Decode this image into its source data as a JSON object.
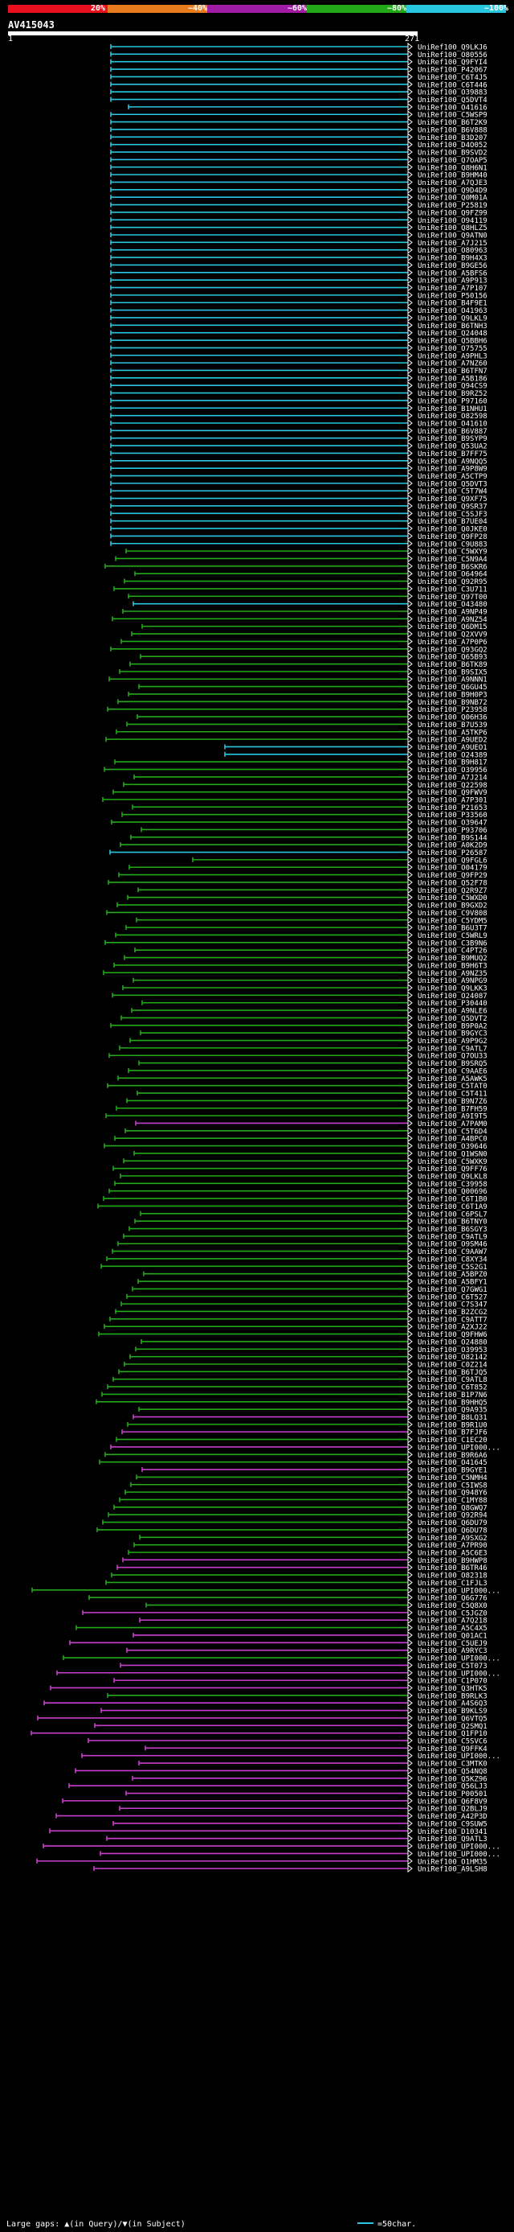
{
  "header": {
    "legend": [
      {
        "label": "20%",
        "color": "#e8101e"
      },
      {
        "label": "~40%",
        "color": "#e87b1e"
      },
      {
        "label": "~60%",
        "color": "#a21ba4"
      },
      {
        "label": "~80%",
        "color": "#22a818"
      },
      {
        "label": "~100%",
        "color": "#29c6e0"
      }
    ],
    "query_id": "AV415043",
    "ruler_start": "1",
    "ruler_end": "271"
  },
  "colors": {
    "cyan": "#29c6e0",
    "green": "#22a818",
    "magenta": "#c83ecc"
  },
  "hits": {
    "labels": [
      "UniRef100_Q9LKJ6",
      "UniRef100_O80556",
      "UniRef100_Q9FYI4",
      "UniRef100_P42067",
      "UniRef100_C6T4J5",
      "UniRef100_C6T446",
      "UniRef100_O39883",
      "UniRef100_Q5DVT4",
      "UniRef100_O41616",
      "UniRef100_C5WSP9",
      "UniRef100_B6T2K9",
      "UniRef100_B6V888",
      "UniRef100_B3D207",
      "UniRef100_D4O052",
      "UniRef100_B9SVD2",
      "UniRef100_Q7OAP5",
      "UniRef100_Q8H6N1",
      "UniRef100_B9HM40",
      "UniRef100_A7QJE3",
      "UniRef100_Q9D4D9",
      "UniRef100_Q0M01A",
      "UniRef100_P25819",
      "UniRef100_Q9FZ99",
      "UniRef100_O94119",
      "UniRef100_Q8HLZ5",
      "UniRef100_Q9ATN0",
      "UniRef100_A7J215",
      "UniRef100_O80963",
      "UniRef100_B9H4X3",
      "UniRef100_B9GE56",
      "UniRef100_A5BFS6",
      "UniRef100_A9P913",
      "UniRef100_A7P107",
      "UniRef100_P50156",
      "UniRef100_B4F9E1",
      "UniRef100_O41963",
      "UniRef100_Q9LKL9",
      "UniRef100_B6TNH3",
      "UniRef100_Q24048",
      "UniRef100_Q5BBH6",
      "UniRef100_O75755",
      "UniRef100_A9PHL3",
      "UniRef100_A7NZ60",
      "UniRef100_B6TFN7",
      "UniRef100_A5B186",
      "UniRef100_Q94CS9",
      "UniRef100_B9RZ52",
      "UniRef100_P97160",
      "UniRef100_B1NHU1",
      "UniRef100_O82598",
      "UniRef100_O41610",
      "UniRef100_B6V887",
      "UniRef100_B9SYP9",
      "UniRef100_Q53UA2",
      "UniRef100_B7FF75",
      "UniRef100_A9NQQ5",
      "UniRef100_A9P8W9",
      "UniRef100_A5CTP9",
      "UniRef100_Q5DVT3",
      "UniRef100_C5T7W4",
      "UniRef100_Q9XF75",
      "UniRef100_Q9SR37",
      "UniRef100_C5SJF3",
      "UniRef100_B7UE04",
      "UniRef100_Q0JKE0",
      "UniRef100_Q9FP28",
      "UniRef100_C9U883",
      "UniRef100_C5WXY9",
      "UniRef100_C5N9A4",
      "UniRef100_B6SKR6",
      "UniRef100_O64964",
      "UniRef100_Q92R95",
      "UniRef100_C3U711",
      "UniRef100_Q97T00",
      "UniRef100_O43480",
      "UniRef100_A9NP49",
      "UniRef100_A9NZ54",
      "UniRef100_Q6DM15",
      "UniRef100_Q2XVV9",
      "UniRef100_A7P0P6",
      "UniRef100_Q93GQ2",
      "UniRef100_Q65B93",
      "UniRef100_B6TK89",
      "UniRef100_B9SIX5",
      "UniRef100_A9NNN1",
      "UniRef100_Q6GU45",
      "UniRef100_B9H0P3",
      "UniRef100_B9NB72",
      "UniRef100_P23958",
      "UniRef100_Q06H36",
      "UniRef100_B7U539",
      "UniRef100_A5TKP6",
      "UniRef100_A9UED2",
      "UniRef100_A9UEO1",
      "UniRef100_O24389",
      "UniRef100_B9H817",
      "UniRef100_O39956",
      "UniRef100_A7J214",
      "UniRef100_Q22598",
      "UniRef100_Q9FWV9",
      "UniRef100_A7P301",
      "UniRef100_P21653",
      "UniRef100_P33560",
      "UniRef100_O39647",
      "UniRef100_P93706",
      "UniRef100_B9S144",
      "UniRef100_A0K2D9",
      "UniRef100_P26587",
      "UniRef100_Q9FGL6",
      "UniRef100_O04179",
      "UniRef100_Q9FP29",
      "UniRef100_Q52F78",
      "UniRef100_Q2R9Z7",
      "UniRef100_C5WXD0",
      "UniRef100_B9GXD2",
      "UniRef100_C9V808",
      "UniRef100_C5YDM5",
      "UniRef100_B6U3T7",
      "UniRef100_C5WRL9",
      "UniRef100_C3B9N6",
      "UniRef100_C4PT26",
      "UniRef100_B9MUQ2",
      "UniRef100_B9H6T3",
      "UniRef100_A9NZ35",
      "UniRef100_A9NPG9",
      "UniRef100_Q9LKK3",
      "UniRef100_O24087",
      "UniRef100_P30440",
      "UniRef100_A9NLE6",
      "UniRef100_Q5DVT2",
      "UniRef100_B9P0A2",
      "UniRef100_B9GYC3",
      "UniRef100_A9P9G2",
      "UniRef100_C9ATL7",
      "UniRef100_Q7OU33",
      "UniRef100_B9SRQ5",
      "UniRef100_C9AAE6",
      "UniRef100_A5AWK5",
      "UniRef100_C5TAT0",
      "UniRef100_C5T411",
      "UniRef100_B9N7Z6",
      "UniRef100_B7FH59",
      "UniRef100_A9I9T5",
      "UniRef100_A7PAM0",
      "UniRef100_C5T6D4",
      "UniRef100_A4BPC0",
      "UniRef100_O39646",
      "UniRef100_Q1WSN0",
      "UniRef100_C5WXK9",
      "UniRef100_Q9FF76",
      "UniRef100_Q9LKL8",
      "UniRef100_C39958",
      "UniRef100_Q00696",
      "UniRef100_C6T1B0",
      "UniRef100_C6T1A9",
      "UniRef100_C6PSL7",
      "UniRef100_B6TNY0",
      "UniRef100_B6SGY3",
      "UniRef100_C9ATL9",
      "UniRef100_O9SM46",
      "UniRef100_C9AAW7",
      "UniRef100_C8XY34",
      "UniRef100_C5S2G1",
      "UniRef100_A5BPZ0",
      "UniRef100_A5BFY1",
      "UniRef100_Q7GWG1",
      "UniRef100_C6T527",
      "UniRef100_C7S347",
      "UniRef100_B2ZCG2",
      "UniRef100_C9ATT7",
      "UniRef100_A2XJ22",
      "UniRef100_Q9FHW6",
      "UniRef100_O24880",
      "UniRef100_O39953",
      "UniRef100_O82142",
      "UniRef100_C0Z214",
      "UniRef100_B6TJQ5",
      "UniRef100_C9ATL8",
      "UniRef100_C6T852",
      "UniRef100_B1P7N6",
      "UniRef100_B9HHQ5",
      "UniRef100_Q9A935",
      "UniRef100_B8LQ31",
      "UniRef100_B9R1U0",
      "UniRef100_B7FJF6",
      "UniRef100_C1EC20",
      "UniRef100_UPI000...",
      "UniRef100_B9R6A6",
      "UniRef100_O41645",
      "UniRef100_B9GYE1",
      "UniRef100_C5NMH4",
      "UniRef100_C5IWS8",
      "UniRef100_Q948Y6",
      "UniRef100_C1MY88",
      "UniRef100_Q8GWQ7",
      "UniRef100_Q92R94",
      "UniRef100_Q6DU79",
      "UniRef100_Q6DU78",
      "UniRef100_A9SXG2",
      "UniRef100_A7PR90",
      "UniRef100_A5C6E3",
      "UniRef100_B9HWP8",
      "UniRef100_B6TR46",
      "UniRef100_O82318",
      "UniRef100_C1FJL3",
      "UniRef100_UPI000...",
      "UniRef100_Q6G776",
      "UniRef100_C5Q8X0",
      "UniRef100_C5JGZ0",
      "UniRef100_A7Q218",
      "UniRef100_A5C4X5",
      "UniRef100_Q01AC1",
      "UniRef100_C5UEJ9",
      "UniRef100_A9RYC3",
      "UniRef100_UPI000...",
      "UniRef100_C5T073",
      "UniRef100_UPI000...",
      "UniRef100_C1P070",
      "UniRef100_Q3HTK5",
      "UniRef100_B9RLK3",
      "UniRef100_A4S6Q3",
      "UniRef100_B9KLS9",
      "UniRef100_Q6VTQ5",
      "UniRef100_Q2SMQ1",
      "UniRef100_Q1FP10",
      "UniRef100_C5SVC6",
      "UniRef100_Q9FFK4",
      "UniRef100_UPI000...",
      "UniRef100_C3MTK0",
      "UniRef100_Q54NQ8",
      "UniRef100_Q5KZ96",
      "UniRef100_Q56LJ3",
      "UniRef100_P00501",
      "UniRef100_Q6F8V9",
      "UniRef100_Q2BLJ9",
      "UniRef100_A42P3D",
      "UniRef100_C9SUW5",
      "UniRef100_D10341",
      "UniRef100_Q9ATL3",
      "UniRef100_UPI000...",
      "UniRef100_UPI000...",
      "UniRef100_O1HM35",
      "UniRef100_A9LSH8"
    ],
    "colors": [
      "c",
      "c",
      "c",
      "c",
      "c",
      "c",
      "c",
      "c",
      "c",
      "c",
      "c",
      "c",
      "c",
      "c",
      "c",
      "c",
      "c",
      "c",
      "c",
      "c",
      "c",
      "c",
      "c",
      "c",
      "c",
      "c",
      "c",
      "c",
      "c",
      "c",
      "c",
      "c",
      "c",
      "c",
      "c",
      "c",
      "c",
      "c",
      "c",
      "c",
      "c",
      "c",
      "c",
      "c",
      "c",
      "c",
      "c",
      "c",
      "c",
      "c",
      "c",
      "c",
      "c",
      "c",
      "c",
      "c",
      "c",
      "c",
      "c",
      "c",
      "c",
      "c",
      "c",
      "c",
      "c",
      "c",
      "c",
      "g",
      "g",
      "g",
      "g",
      "g",
      "g",
      "g",
      "c",
      "g",
      "g",
      "g",
      "g",
      "g",
      "g",
      "g",
      "g",
      "g",
      "g",
      "g",
      "g",
      "g",
      "g",
      "g",
      "g",
      "g",
      "g",
      "c",
      "c",
      "g",
      "g",
      "g",
      "g",
      "g",
      "g",
      "g",
      "g",
      "g",
      "g",
      "g",
      "g",
      "c",
      "g",
      "g",
      "g",
      "g",
      "g",
      "g",
      "g",
      "g",
      "g",
      "g",
      "g",
      "g",
      "g",
      "g",
      "g",
      "g",
      "g",
      "g",
      "g",
      "g",
      "g",
      "g",
      "g",
      "g",
      "g",
      "g",
      "g",
      "g",
      "g",
      "g",
      "g",
      "g",
      "g",
      "g",
      "g",
      "m",
      "g",
      "g",
      "g",
      "g",
      "g",
      "g",
      "g",
      "g",
      "g",
      "g",
      "g",
      "g",
      "g",
      "g",
      "g",
      "g",
      "g",
      "g",
      "g",
      "g",
      "g",
      "g",
      "g",
      "g",
      "g",
      "g",
      "g",
      "g",
      "g",
      "g",
      "g",
      "g",
      "g",
      "g",
      "g",
      "g",
      "g",
      "g",
      "m",
      "g",
      "m",
      "g",
      "m",
      "g",
      "g",
      "m",
      "g",
      "g",
      "g",
      "g",
      "g",
      "g",
      "g",
      "g",
      "g",
      "g",
      "g",
      "m",
      "m",
      "g",
      "g",
      "g",
      "g",
      "g",
      "m",
      "m",
      "g",
      "m",
      "m",
      "m",
      "g",
      "m",
      "m",
      "m",
      "m",
      "g",
      "m",
      "m",
      "m",
      "m",
      "m",
      "m",
      "m",
      "m",
      "m",
      "m",
      "m",
      "m",
      "m",
      "m",
      "m",
      "m",
      "m",
      "m",
      "m",
      "m",
      "m",
      "m",
      "m",
      "m",
      "m"
    ]
  },
  "footer": {
    "text": "Large gaps: ▲(in Query)/▼(in Subject)",
    "scale": "=50char."
  }
}
